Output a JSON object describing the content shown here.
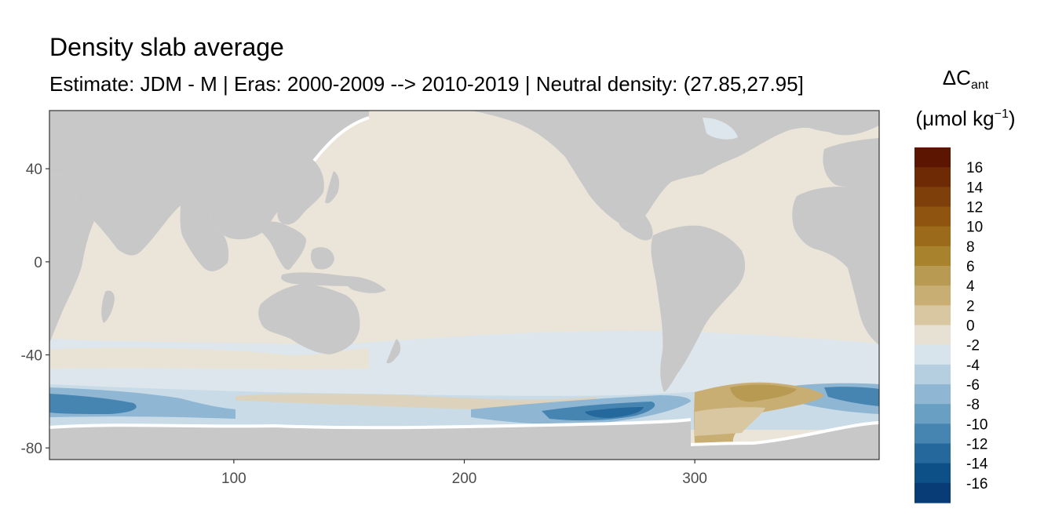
{
  "title": "Density slab average",
  "subtitle": "Estimate: JDM - M | Eras: 2000-2009 --> 2010-2019 | Neutral density: (27.85,27.95]",
  "legend": {
    "title_main": "ΔC",
    "title_sub": "ant",
    "unit_prefix": "(μmol kg",
    "unit_sup": "−1",
    "unit_suffix": ")",
    "labels": [
      "16",
      "14",
      "12",
      "10",
      "8",
      "6",
      "4",
      "2",
      "0",
      "-2",
      "-4",
      "-6",
      "-8",
      "-10",
      "-12",
      "-14",
      "-16"
    ],
    "colors": [
      "#5c1500",
      "#6e2a05",
      "#7f3f0a",
      "#8f5510",
      "#9b6a1a",
      "#a9822e",
      "#b99a52",
      "#c8ae72",
      "#d8c7a0",
      "#e7e1d3",
      "#d7e4ec",
      "#b6cfe0",
      "#8fb7d3",
      "#6a9fc4",
      "#4684b1",
      "#24689c",
      "#0d4f87",
      "#083c77",
      "#052a68",
      "#041a5c"
    ]
  },
  "colors": {
    "land": "#c8c8c8",
    "ocean_neutral": "#ebe5d9",
    "panel_border": "#333333",
    "axis_text": "#4d4d4d"
  },
  "chart_data": {
    "type": "heatmap",
    "title": "Density slab average",
    "subtitle": "Estimate: JDM - M | Eras: 2000-2009 --> 2010-2019 | Neutral density: (27.85,27.95]",
    "xlabel": "",
    "ylabel": "",
    "xlim": [
      20,
      380
    ],
    "ylim": [
      -85,
      65
    ],
    "x_ticks": [
      100,
      200,
      300
    ],
    "y_ticks": [
      40,
      0,
      -40,
      -80
    ],
    "grid": false,
    "legend_position": "right",
    "colorbar_range": [
      -18,
      18
    ],
    "colorbar_step": 2,
    "regions": [
      {
        "region": "North Atlantic / Pacific / Indian subtropics",
        "dcant_range": "0 to 2"
      },
      {
        "region": "Southern Ocean Pacific sector (~230-290E, ~-65)",
        "dcant_range": "-8 to -10"
      },
      {
        "region": "Southern Ocean Indian sector (~20-60E, ~-60)",
        "dcant_range": "-6 to -10"
      },
      {
        "region": "Weddell Sea region (~310-350E, ~-55 to -75)",
        "dcant_range": "4 to 8"
      },
      {
        "region": "Eastern South Atlantic (~360-375E, ~-55)",
        "dcant_range": "-6 to -10"
      }
    ]
  }
}
